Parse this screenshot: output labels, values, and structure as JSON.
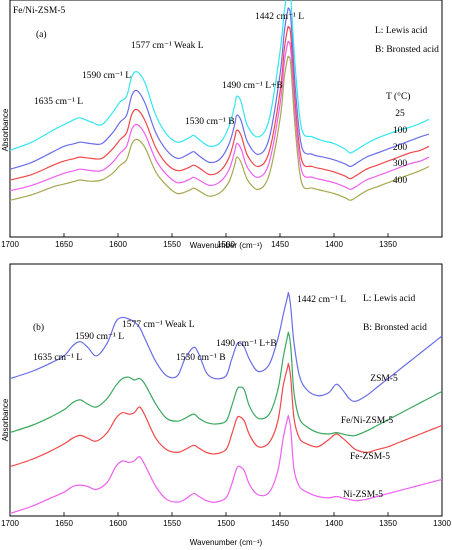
{
  "chart_data": [
    {
      "type": "line",
      "panel_label": "(a)",
      "sample_label": "Fe/Ni-ZSM-5",
      "xlabel": "Wavenumber (cm⁻¹)",
      "ylabel": "Absorbance",
      "xlim": [
        1700,
        1300
      ],
      "x_ticks": [
        "1700",
        "1650",
        "1600",
        "1550",
        "1500",
        "1450",
        "1400",
        "1350"
      ],
      "annotations": [
        "1635 cm⁻¹ L",
        "1590 cm⁻¹ L",
        "1577 cm⁻¹ Weak L",
        "1530 cm⁻¹ B",
        "1490 cm⁻¹ L+B",
        "1442 cm⁻¹ L"
      ],
      "legend_notes": [
        "L: Lewis acid",
        "B: Bronsted acid"
      ],
      "temp_header": "T (°C)",
      "x": [
        1700,
        1680,
        1660,
        1650,
        1640,
        1635,
        1625,
        1615,
        1605,
        1598,
        1592,
        1587,
        1582,
        1575,
        1565,
        1555,
        1545,
        1535,
        1530,
        1525,
        1515,
        1505,
        1497,
        1492,
        1490,
        1486,
        1480,
        1470,
        1460,
        1450,
        1446,
        1443,
        1442,
        1440,
        1436,
        1430,
        1420,
        1410,
        1400,
        1390,
        1385,
        1380,
        1370,
        1360,
        1350,
        1340,
        1330,
        1320,
        1312
      ],
      "series": [
        {
          "name": "25",
          "color": "#33e6f0",
          "values": [
            0.22,
            0.28,
            0.37,
            0.41,
            0.45,
            0.46,
            0.43,
            0.41,
            0.5,
            0.58,
            0.62,
            0.77,
            0.8,
            0.72,
            0.48,
            0.34,
            0.28,
            0.31,
            0.33,
            0.3,
            0.25,
            0.28,
            0.4,
            0.55,
            0.62,
            0.58,
            0.4,
            0.32,
            0.45,
            0.95,
            1.25,
            1.4,
            1.42,
            1.35,
            0.85,
            0.38,
            0.32,
            0.29,
            0.27,
            0.23,
            0.2,
            0.22,
            0.27,
            0.31,
            0.34,
            0.37,
            0.39,
            0.42,
            0.45
          ]
        },
        {
          "name": "100",
          "color": "#6a6ee8",
          "values": [
            0.08,
            0.13,
            0.21,
            0.25,
            0.27,
            0.28,
            0.27,
            0.27,
            0.35,
            0.43,
            0.48,
            0.63,
            0.66,
            0.57,
            0.35,
            0.22,
            0.16,
            0.19,
            0.21,
            0.18,
            0.13,
            0.16,
            0.27,
            0.41,
            0.48,
            0.44,
            0.28,
            0.19,
            0.31,
            0.78,
            1.1,
            1.25,
            1.27,
            1.2,
            0.7,
            0.25,
            0.19,
            0.17,
            0.15,
            0.12,
            0.1,
            0.12,
            0.17,
            0.2,
            0.23,
            0.26,
            0.29,
            0.32,
            0.34
          ]
        },
        {
          "name": "200",
          "color": "#f04848",
          "values": [
            0.0,
            0.04,
            0.11,
            0.14,
            0.16,
            0.17,
            0.16,
            0.16,
            0.23,
            0.3,
            0.35,
            0.49,
            0.52,
            0.44,
            0.24,
            0.12,
            0.07,
            0.09,
            0.11,
            0.09,
            0.04,
            0.07,
            0.17,
            0.31,
            0.37,
            0.33,
            0.18,
            0.1,
            0.21,
            0.65,
            0.97,
            1.12,
            1.13,
            1.07,
            0.58,
            0.15,
            0.1,
            0.08,
            0.06,
            0.03,
            0.01,
            0.03,
            0.08,
            0.11,
            0.14,
            0.17,
            0.2,
            0.22,
            0.25
          ]
        },
        {
          "name": "300",
          "color": "#f060f0",
          "values": [
            -0.08,
            -0.04,
            0.02,
            0.05,
            0.07,
            0.08,
            0.07,
            0.07,
            0.13,
            0.2,
            0.25,
            0.38,
            0.41,
            0.34,
            0.15,
            0.04,
            -0.02,
            0.0,
            0.02,
            0.0,
            -0.04,
            -0.01,
            0.08,
            0.21,
            0.27,
            0.23,
            0.09,
            0.02,
            0.13,
            0.56,
            0.87,
            1.01,
            1.02,
            0.96,
            0.49,
            0.07,
            0.02,
            0.0,
            -0.02,
            -0.05,
            -0.07,
            -0.05,
            0.0,
            0.03,
            0.06,
            0.09,
            0.12,
            0.14,
            0.17
          ]
        },
        {
          "name": "400",
          "color": "#a8a850",
          "values": [
            -0.15,
            -0.11,
            -0.05,
            -0.03,
            -0.01,
            0.0,
            -0.01,
            0.0,
            0.05,
            0.11,
            0.15,
            0.27,
            0.3,
            0.24,
            0.06,
            -0.04,
            -0.1,
            -0.08,
            -0.06,
            -0.08,
            -0.12,
            -0.09,
            -0.01,
            0.11,
            0.17,
            0.13,
            0.0,
            -0.07,
            0.04,
            0.45,
            0.76,
            0.9,
            0.91,
            0.85,
            0.39,
            -0.02,
            -0.06,
            -0.08,
            -0.1,
            -0.13,
            -0.15,
            -0.13,
            -0.08,
            -0.05,
            -0.02,
            0.01,
            0.04,
            0.07,
            0.1
          ]
        }
      ]
    },
    {
      "type": "line",
      "panel_label": "(b)",
      "xlabel": "Wavenumber (cm⁻¹)",
      "ylabel": "Absorbance",
      "xlim": [
        1700,
        1300
      ],
      "x_ticks": [
        "1700",
        "1650",
        "1600",
        "1550",
        "1500",
        "1450",
        "1400",
        "1350",
        "1300"
      ],
      "annotations": [
        "1635 cm⁻¹ L",
        "1590 cm⁻¹ L",
        "1577 cm⁻¹ Weak L",
        "1530 cm⁻¹ B",
        "1490 cm⁻¹ L+B",
        "1442 cm⁻¹ L"
      ],
      "legend_notes": [
        "L: Lewis acid",
        "B: Bronsted acid"
      ],
      "x": [
        1700,
        1680,
        1665,
        1650,
        1642,
        1635,
        1628,
        1620,
        1610,
        1602,
        1596,
        1590,
        1585,
        1580,
        1575,
        1565,
        1555,
        1545,
        1538,
        1530,
        1525,
        1518,
        1510,
        1500,
        1495,
        1490,
        1487,
        1483,
        1478,
        1470,
        1460,
        1452,
        1447,
        1443,
        1442,
        1440,
        1437,
        1432,
        1425,
        1415,
        1405,
        1398,
        1392,
        1386,
        1380,
        1370,
        1360,
        1350,
        1340,
        1330,
        1320,
        1310,
        1300
      ],
      "series": [
        {
          "name": "ZSM-5",
          "color": "#6a6ee8",
          "values": [
            0.7,
            0.75,
            0.8,
            0.86,
            0.93,
            0.96,
            0.92,
            0.86,
            0.95,
            1.1,
            1.13,
            1.12,
            1.1,
            1.06,
            0.98,
            0.82,
            0.72,
            0.72,
            0.84,
            0.92,
            0.87,
            0.74,
            0.7,
            0.72,
            0.83,
            0.94,
            0.95,
            0.92,
            0.83,
            0.75,
            0.8,
            0.98,
            1.15,
            1.28,
            1.3,
            1.2,
            0.95,
            0.72,
            0.62,
            0.58,
            0.6,
            0.66,
            0.62,
            0.56,
            0.54,
            0.58,
            0.64,
            0.7,
            0.76,
            0.82,
            0.88,
            0.94,
            1.0
          ]
        },
        {
          "name": "Fe/Ni-ZSM-5",
          "color": "#3aa860",
          "values": [
            0.32,
            0.37,
            0.42,
            0.48,
            0.53,
            0.55,
            0.52,
            0.5,
            0.56,
            0.65,
            0.7,
            0.71,
            0.69,
            0.7,
            0.66,
            0.52,
            0.42,
            0.4,
            0.42,
            0.45,
            0.42,
            0.39,
            0.38,
            0.4,
            0.5,
            0.62,
            0.64,
            0.62,
            0.5,
            0.42,
            0.45,
            0.62,
            0.85,
            1.0,
            1.02,
            0.92,
            0.6,
            0.42,
            0.36,
            0.32,
            0.31,
            0.32,
            0.31,
            0.3,
            0.3,
            0.33,
            0.37,
            0.41,
            0.45,
            0.49,
            0.53,
            0.57,
            0.61
          ]
        },
        {
          "name": "Fe-ZSM-5",
          "color": "#f04848",
          "values": [
            0.08,
            0.13,
            0.18,
            0.24,
            0.28,
            0.3,
            0.28,
            0.26,
            0.32,
            0.42,
            0.46,
            0.45,
            0.46,
            0.5,
            0.44,
            0.28,
            0.2,
            0.18,
            0.2,
            0.23,
            0.21,
            0.18,
            0.17,
            0.2,
            0.3,
            0.42,
            0.43,
            0.4,
            0.3,
            0.22,
            0.25,
            0.4,
            0.65,
            0.78,
            0.8,
            0.7,
            0.42,
            0.28,
            0.24,
            0.22,
            0.27,
            0.31,
            0.28,
            0.24,
            0.2,
            0.18,
            0.2,
            0.22,
            0.25,
            0.28,
            0.31,
            0.34,
            0.37
          ]
        },
        {
          "name": "Ni-ZSM-5",
          "color": "#f060f0",
          "values": [
            -0.25,
            -0.2,
            -0.15,
            -0.1,
            -0.06,
            -0.05,
            -0.06,
            -0.08,
            -0.03,
            0.08,
            0.12,
            0.11,
            0.12,
            0.15,
            0.09,
            -0.06,
            -0.15,
            -0.17,
            -0.15,
            -0.11,
            -0.13,
            -0.16,
            -0.17,
            -0.14,
            -0.05,
            0.07,
            0.08,
            0.05,
            -0.05,
            -0.12,
            -0.1,
            0.05,
            0.28,
            0.42,
            0.43,
            0.34,
            0.06,
            -0.06,
            -0.1,
            -0.13,
            -0.14,
            -0.13,
            -0.14,
            -0.15,
            -0.16,
            -0.15,
            -0.13,
            -0.11,
            -0.09,
            -0.07,
            -0.05,
            -0.03,
            -0.01
          ]
        }
      ]
    }
  ]
}
